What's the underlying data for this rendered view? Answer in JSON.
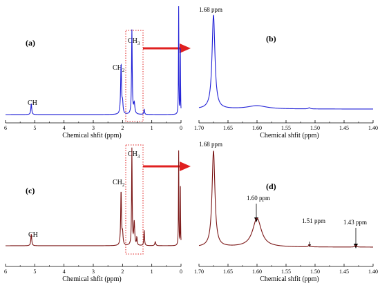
{
  "chart_data": [
    {
      "panel": "(a)",
      "type": "line",
      "xlabel": "Chemical shfit (ppm)",
      "xlim": [
        6,
        0
      ],
      "ticks": [
        "6",
        "5",
        "4",
        "3",
        "2",
        "1",
        "0"
      ],
      "color": "#1f1fd6",
      "peaks": [
        {
          "x": 5.12,
          "h": 0.1,
          "w": 0.018
        },
        {
          "x": 2.05,
          "h": 0.46,
          "w": 0.018
        },
        {
          "x": 2.0,
          "h": 0.1,
          "w": 0.02
        },
        {
          "x": 1.68,
          "h": 0.78,
          "w": 0.014
        },
        {
          "x": 1.6,
          "h": 0.1,
          "w": 0.025
        },
        {
          "x": 1.26,
          "h": 0.05,
          "w": 0.015
        },
        {
          "x": 0.08,
          "h": 1.0,
          "w": 0.008
        },
        {
          "x": 0.02,
          "h": 0.6,
          "w": 0.006
        }
      ],
      "annotations": [
        "CH",
        "CH2",
        "CH3"
      ]
    },
    {
      "panel": "(b)",
      "type": "line",
      "xlabel": "Chemical shfit (ppm)",
      "xlim": [
        1.7,
        1.4
      ],
      "ticks": [
        "1.70",
        "1.65",
        "1.60",
        "1.55",
        "1.50",
        "1.45",
        "1.40"
      ],
      "color": "#1f1fd6",
      "peaks": [
        {
          "x": 1.675,
          "h": 1.0,
          "w": 0.003
        },
        {
          "x": 1.6,
          "h": 0.035,
          "w": 0.02
        },
        {
          "x": 1.51,
          "h": 0.012,
          "w": 0.002
        }
      ],
      "annotations": [
        "1.68 ppm"
      ]
    },
    {
      "panel": "(c)",
      "type": "line",
      "xlabel": "Chemical shfit (ppm)",
      "xlim": [
        6,
        0
      ],
      "ticks": [
        "6",
        "5",
        "4",
        "3",
        "2",
        "1",
        "0"
      ],
      "color": "#7a1414",
      "peaks": [
        {
          "x": 5.12,
          "h": 0.12,
          "w": 0.018
        },
        {
          "x": 2.05,
          "h": 0.56,
          "w": 0.016
        },
        {
          "x": 2.0,
          "h": 0.12,
          "w": 0.02
        },
        {
          "x": 1.68,
          "h": 1.0,
          "w": 0.012
        },
        {
          "x": 1.6,
          "h": 0.24,
          "w": 0.02
        },
        {
          "x": 1.51,
          "h": 0.08,
          "w": 0.012
        },
        {
          "x": 1.26,
          "h": 0.16,
          "w": 0.014
        },
        {
          "x": 0.88,
          "h": 0.04,
          "w": 0.02
        },
        {
          "x": 0.08,
          "h": 0.98,
          "w": 0.008
        },
        {
          "x": 0.02,
          "h": 0.6,
          "w": 0.006
        }
      ],
      "annotations": [
        "CH",
        "CH2",
        "CH3"
      ]
    },
    {
      "panel": "(d)",
      "type": "line",
      "xlabel": "Chemical shfit (ppm)",
      "xlim": [
        1.7,
        1.4
      ],
      "ticks": [
        "1.70",
        "1.65",
        "1.60",
        "1.55",
        "1.50",
        "1.45",
        "1.40"
      ],
      "color": "#7a1414",
      "peaks": [
        {
          "x": 1.675,
          "h": 1.0,
          "w": 0.003
        },
        {
          "x": 1.6,
          "h": 0.3,
          "w": 0.009
        },
        {
          "x": 1.51,
          "h": 0.022,
          "w": 0.0015
        },
        {
          "x": 1.43,
          "h": 0.018,
          "w": 0.0015
        }
      ],
      "annotations": [
        "1.68 ppm",
        "1.60 ppm",
        "1.51 ppm",
        "1.43 ppm"
      ]
    }
  ]
}
